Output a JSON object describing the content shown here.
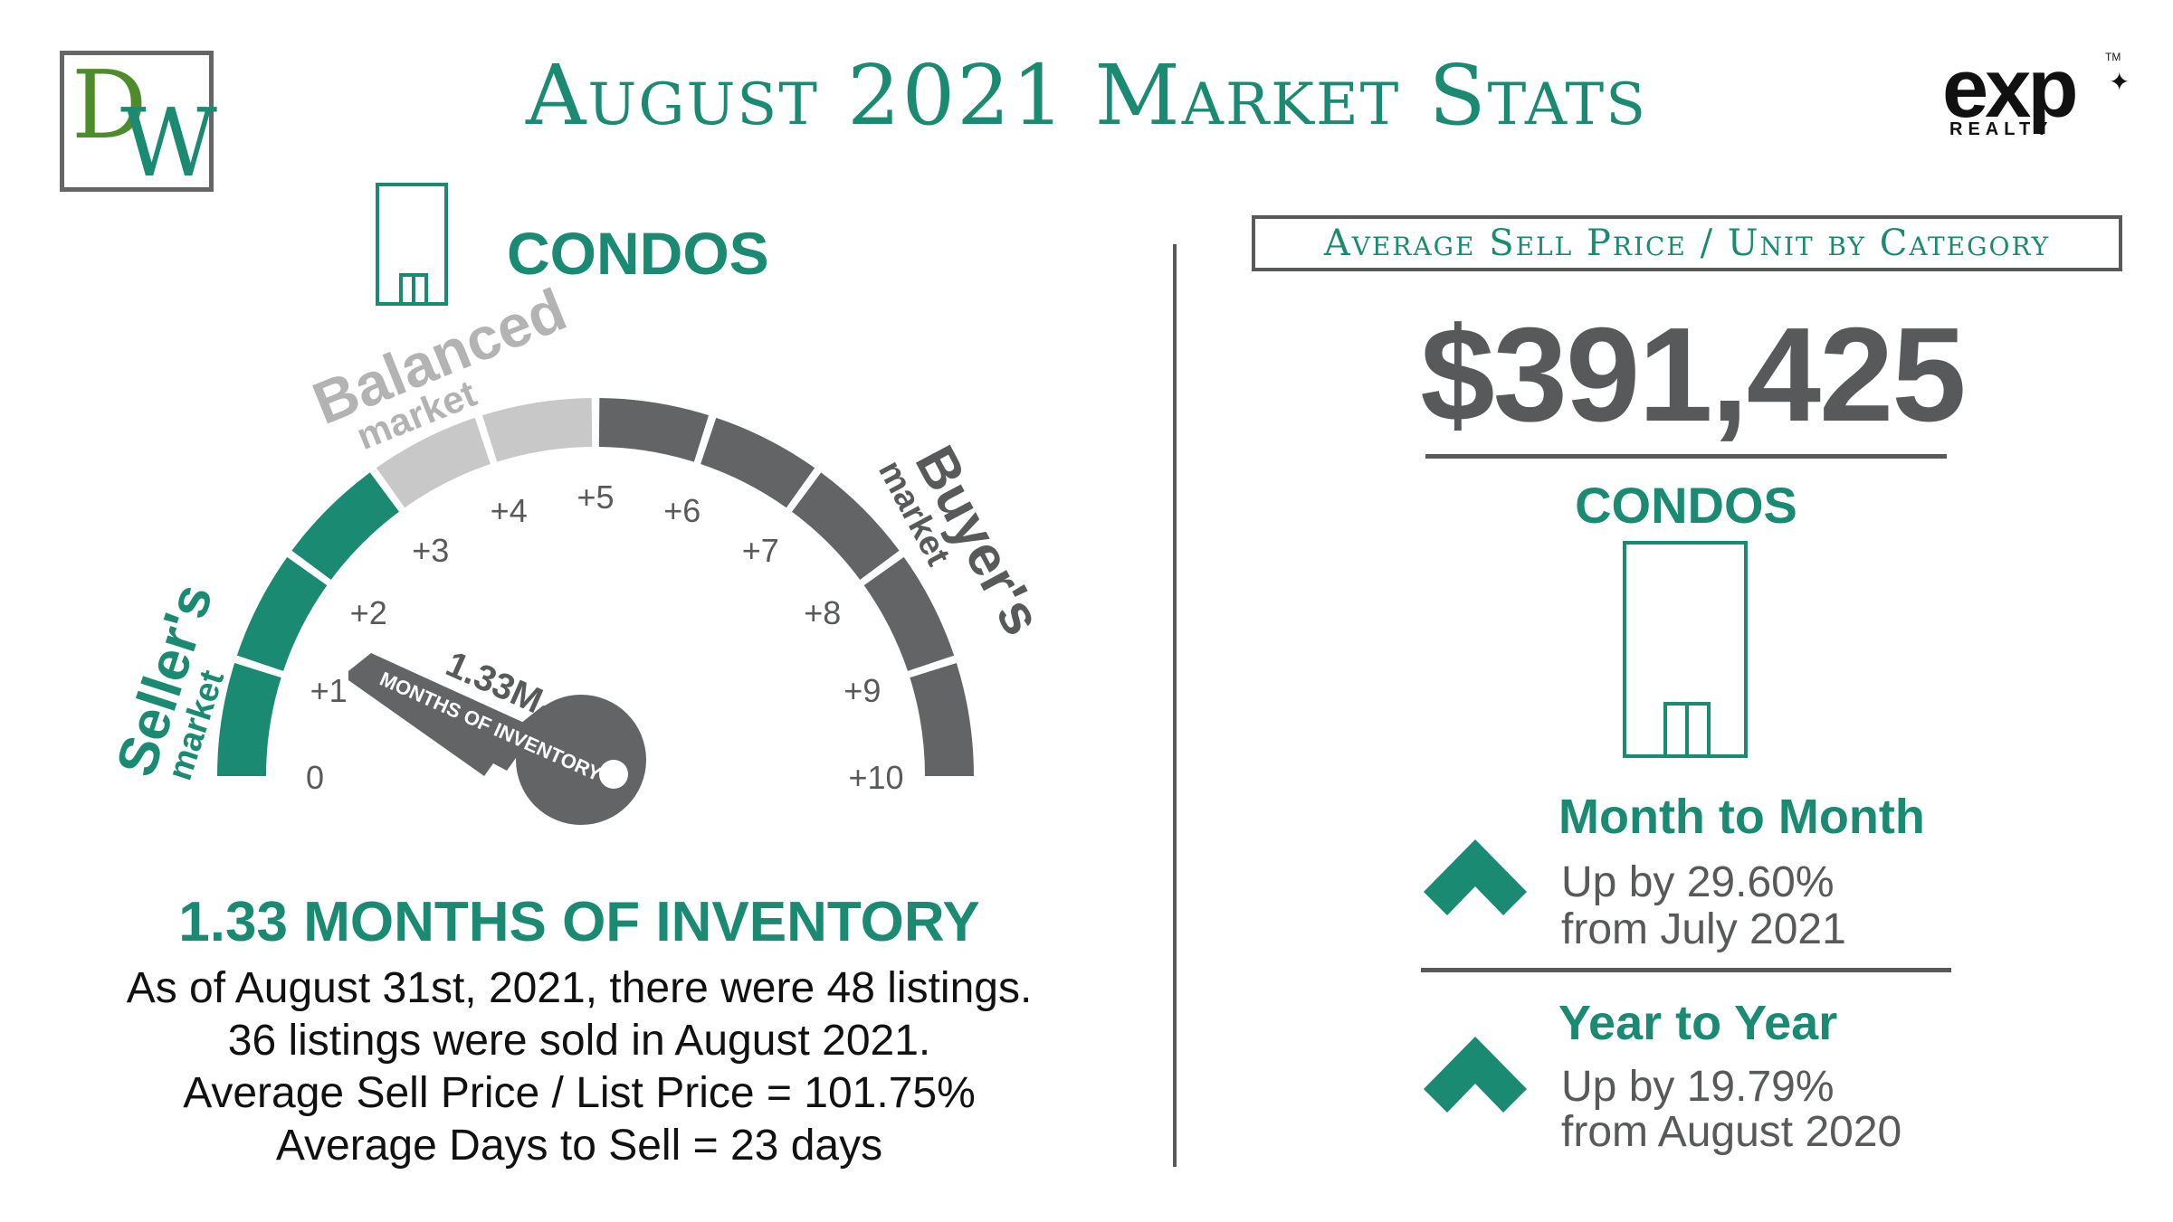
{
  "header": {
    "title": "August 2021 Market Stats",
    "logo_left": {
      "d": "D",
      "w": "W"
    },
    "logo_right": {
      "mark": "exp",
      "realty": "REALTY",
      "tm": "TM"
    }
  },
  "left": {
    "category": "CONDOS",
    "gauge": {
      "labels": {
        "balanced": "Balanced",
        "balanced_sub": "market",
        "sellers": "Seller's",
        "sellers_sub": "market",
        "buyers": "Buyer's",
        "buyers_sub": "market"
      },
      "ticks": [
        "0",
        "+1",
        "+2",
        "+3",
        "+4",
        "+5",
        "+6",
        "+7",
        "+8",
        "+9",
        "+10"
      ],
      "value": 1.33,
      "key_value": "1.33M",
      "key_caption": "MONTHS OF INVENTORY",
      "colors": {
        "sellers": "#1a8a73",
        "balanced": "#c8c8c8",
        "buyers": "#636466"
      }
    },
    "inventory_heading": "1.33 MONTHS OF INVENTORY",
    "inventory_lines": [
      "As of August 31st, 2021, there were 48 listings.",
      "36 listings were sold in August 2021.",
      "Average Sell Price / List Price = 101.75%",
      "Average Days to Sell = 23 days"
    ]
  },
  "right": {
    "box_title": "Average Sell Price / Unit by Category",
    "price": "$391,425",
    "category": "CONDOS",
    "month": {
      "heading": "Month to Month",
      "line1": "Up by 29.60%",
      "line2": "from July 2021"
    },
    "year": {
      "heading": "Year to Year",
      "line1": "Up by 19.79%",
      "line2": "from August 2020"
    }
  },
  "colors": {
    "accent": "#1a8a73",
    "text": "#58595b"
  }
}
